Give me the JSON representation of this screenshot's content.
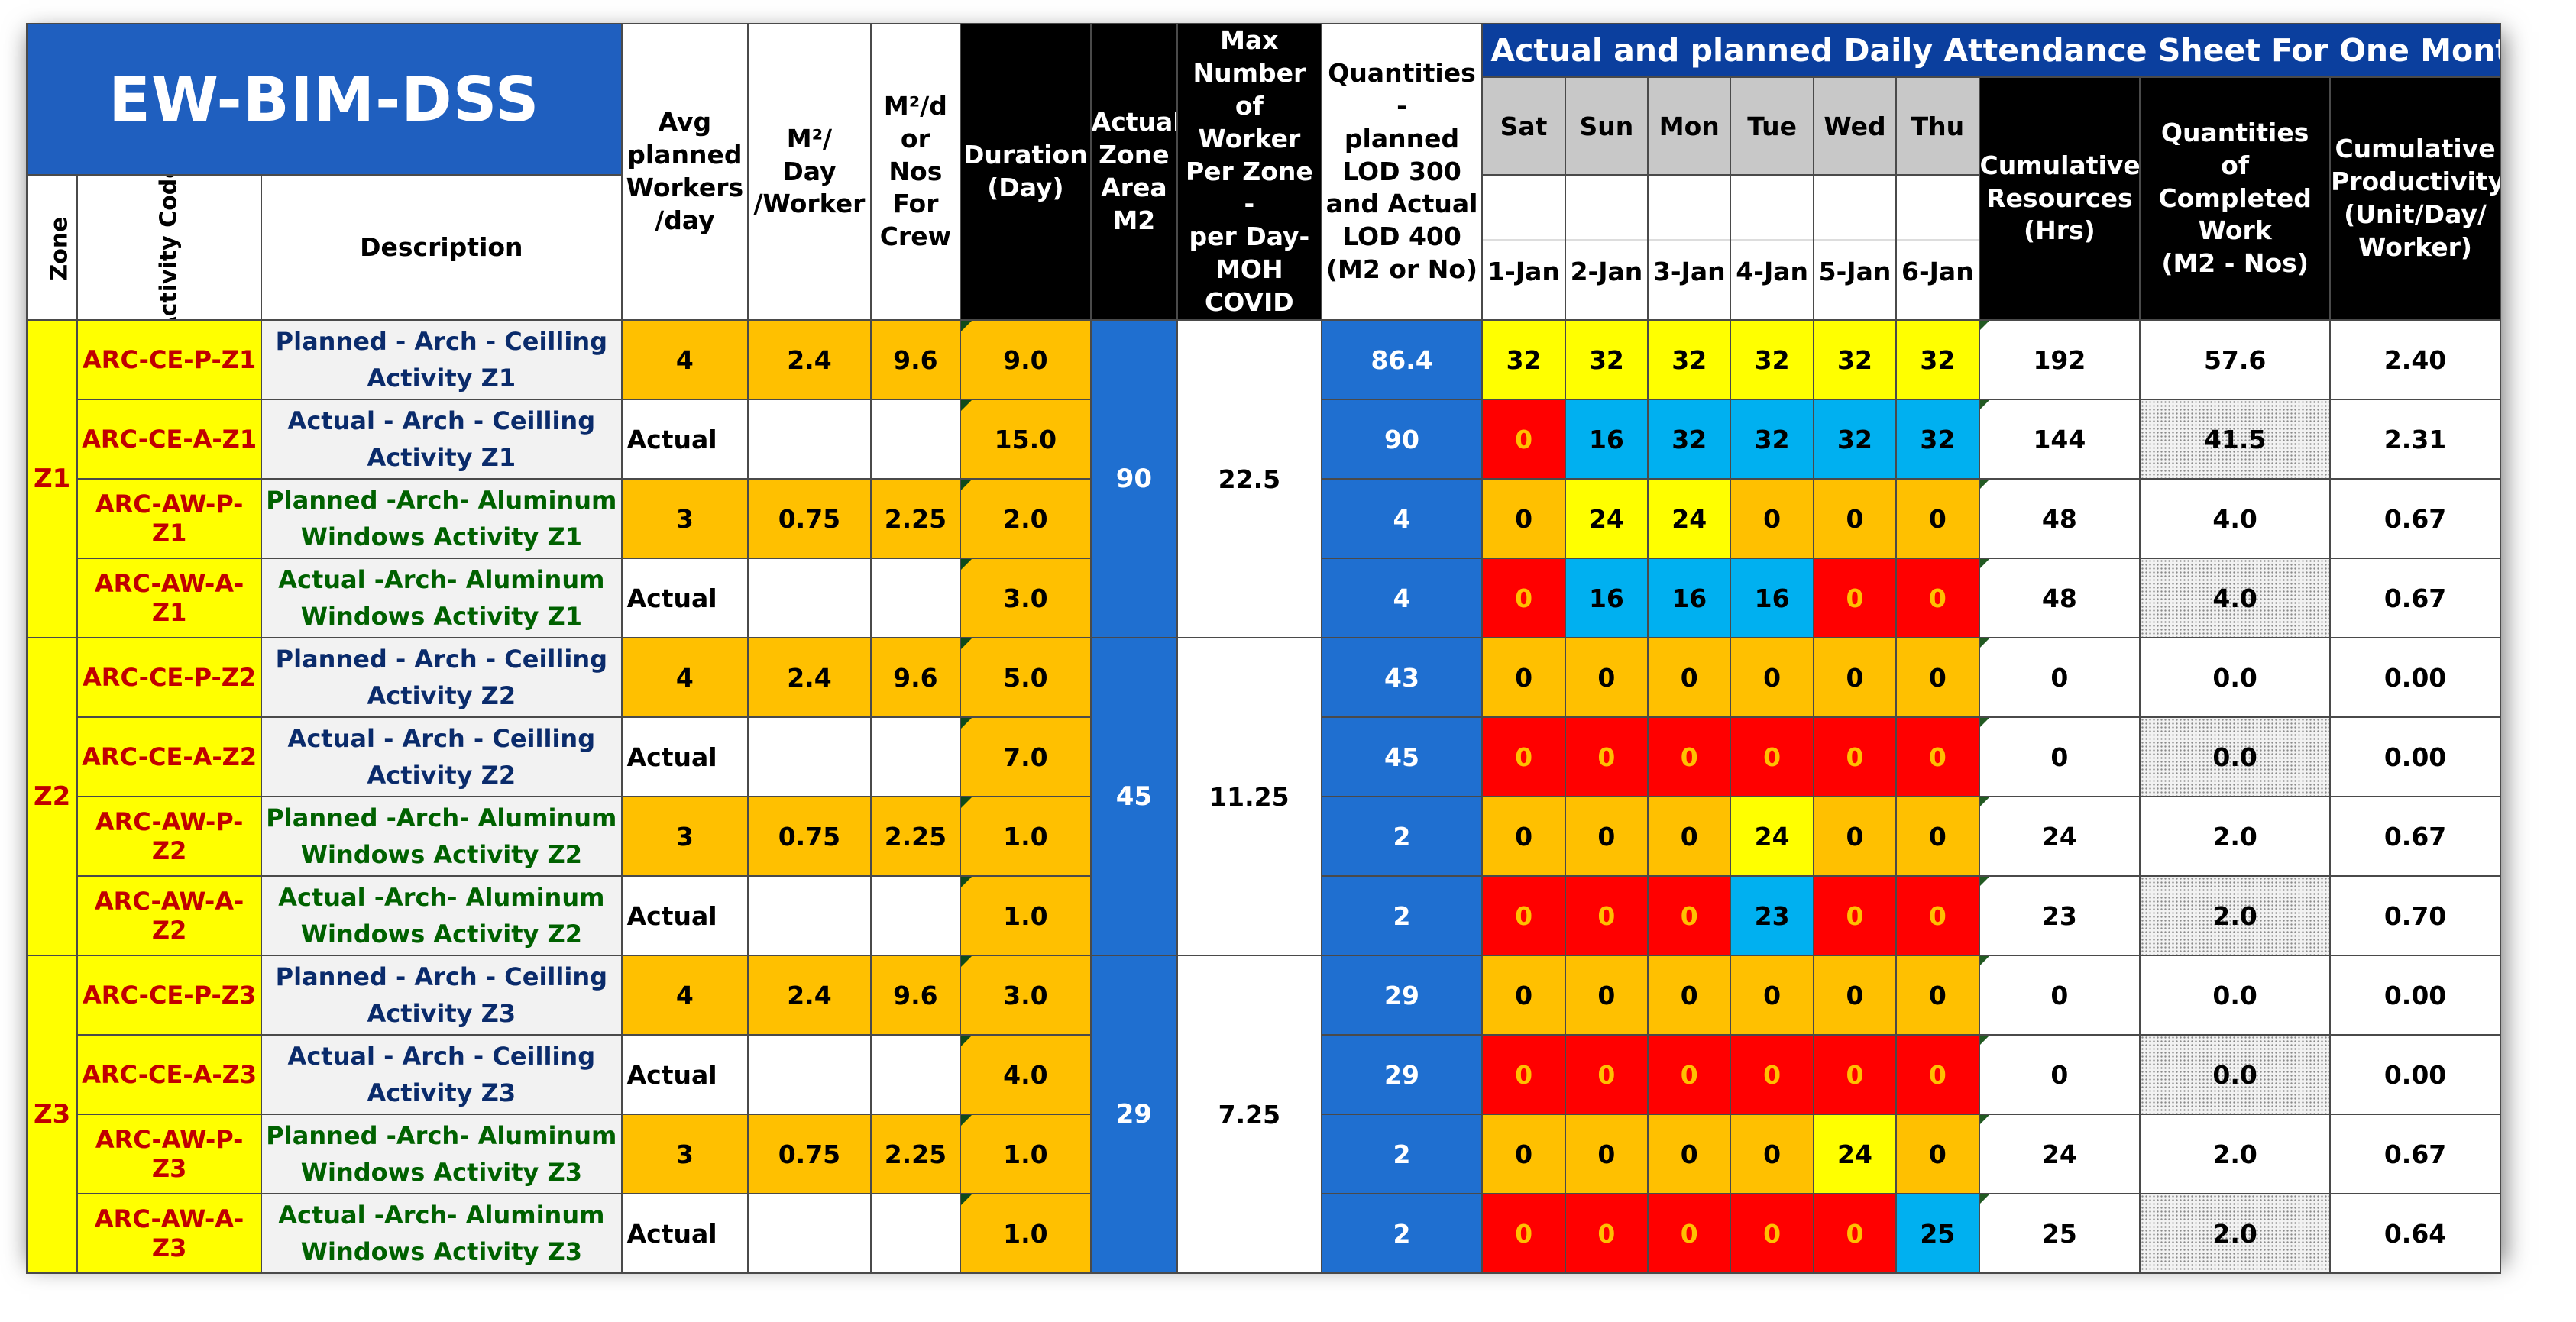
{
  "title": "EW-BIM-DSS",
  "attendance_header": "Actual and planned Daily Attendance Sheet For One Month (per Ho",
  "headers": {
    "zone": "Zone",
    "activity_code": "Activity Code",
    "description": "Description",
    "avg_workers_l1": "Avg",
    "avg_workers_l2": "planned",
    "avg_workers_l3": "Workers",
    "avg_workers_l4": "/day",
    "m2_day_l1": "M²/",
    "m2_day_l2": "Day",
    "m2_day_l3": "/Worker",
    "m2_crew_l1": "M²/d",
    "m2_crew_l2": "or",
    "m2_crew_l3": "Nos",
    "m2_crew_l4": "For",
    "m2_crew_l5": "Crew",
    "duration_l1": "Duration",
    "duration_l2": "(Day)",
    "zone_area_l1": "Actual",
    "zone_area_l2": "Zone",
    "zone_area_l3": "Area",
    "zone_area_l4": "M2",
    "max_workers_l1": "Max",
    "max_workers_l2": "Number of",
    "max_workers_l3": "Worker",
    "max_workers_l4": "Per Zone -",
    "max_workers_l5": "per Day-",
    "max_workers_l6": "MOH",
    "max_workers_l7": "COVID",
    "quantities_l1": "Quantities -",
    "quantities_l2": "planned",
    "quantities_l3": "LOD 300",
    "quantities_l4": "and Actual",
    "quantities_l5": "LOD 400",
    "quantities_l6": "(M2 or No)",
    "cum_resources_l1": "Cumulative",
    "cum_resources_l2": "Resources",
    "cum_resources_l3": "(Hrs)",
    "completed_l1": "Quantities",
    "completed_l2": "of",
    "completed_l3": "Completed",
    "completed_l4": "Work",
    "completed_l5": "(M2 - Nos)",
    "productivity_l1": "Cumulative",
    "productivity_l2": "Productivity",
    "productivity_l3": "(Unit/Day/",
    "productivity_l4": "Worker)"
  },
  "days": [
    {
      "name": "Sat",
      "date": "1-Jan"
    },
    {
      "name": "Sun",
      "date": "2-Jan"
    },
    {
      "name": "Mon",
      "date": "3-Jan"
    },
    {
      "name": "Tue",
      "date": "4-Jan"
    },
    {
      "name": "Wed",
      "date": "5-Jan"
    },
    {
      "name": "Thu",
      "date": "6-Jan"
    }
  ],
  "zones": [
    {
      "zone": "Z1",
      "area": "90",
      "max_workers": "22.5",
      "rows": [
        {
          "code": "ARC-CE-P-Z1",
          "desc1": "Planned - Arch - Ceilling",
          "desc2": "Activity Z1",
          "style": "P",
          "avg": "4",
          "m2day": "2.4",
          "m2crew": "9.6",
          "duration": "9.0",
          "qty": "86.4",
          "days": [
            {
              "v": "32",
              "c": "y"
            },
            {
              "v": "32",
              "c": "y"
            },
            {
              "v": "32",
              "c": "y"
            },
            {
              "v": "32",
              "c": "y"
            },
            {
              "v": "32",
              "c": "y"
            },
            {
              "v": "32",
              "c": "y"
            }
          ],
          "cum": "192",
          "completed": "57.6",
          "productivity": "2.40"
        },
        {
          "code": "ARC-CE-A-Z1",
          "desc1": "Actual - Arch - Ceilling",
          "desc2": "Activity Z1",
          "style": "A",
          "avg": "Actual",
          "m2day": "",
          "m2crew": "",
          "duration": "15.0",
          "qty": "90",
          "days": [
            {
              "v": "0",
              "c": "r"
            },
            {
              "v": "16",
              "c": "b"
            },
            {
              "v": "32",
              "c": "b"
            },
            {
              "v": "32",
              "c": "b"
            },
            {
              "v": "32",
              "c": "b"
            },
            {
              "v": "32",
              "c": "b"
            }
          ],
          "cum": "144",
          "completed": "41.5",
          "productivity": "2.31"
        },
        {
          "code": "ARC-AW-P-Z1",
          "desc1": "Planned -Arch- Aluminum",
          "desc2": "Windows Activity Z1",
          "style": "W",
          "avg": "3",
          "m2day": "0.75",
          "m2crew": "2.25",
          "duration": "2.0",
          "qty": "4",
          "days": [
            {
              "v": "0",
              "c": "o"
            },
            {
              "v": "24",
              "c": "y"
            },
            {
              "v": "24",
              "c": "y"
            },
            {
              "v": "0",
              "c": "o"
            },
            {
              "v": "0",
              "c": "o"
            },
            {
              "v": "0",
              "c": "o"
            }
          ],
          "cum": "48",
          "completed": "4.0",
          "productivity": "0.67"
        },
        {
          "code": "ARC-AW-A-Z1",
          "desc1": "Actual -Arch- Aluminum",
          "desc2": "Windows Activity Z1",
          "style": "W",
          "avg": "Actual",
          "m2day": "",
          "m2crew": "",
          "duration": "3.0",
          "qty": "4",
          "days": [
            {
              "v": "0",
              "c": "r"
            },
            {
              "v": "16",
              "c": "b"
            },
            {
              "v": "16",
              "c": "b"
            },
            {
              "v": "16",
              "c": "b"
            },
            {
              "v": "0",
              "c": "r"
            },
            {
              "v": "0",
              "c": "r"
            }
          ],
          "cum": "48",
          "completed": "4.0",
          "productivity": "0.67"
        }
      ]
    },
    {
      "zone": "Z2",
      "area": "45",
      "max_workers": "11.25",
      "rows": [
        {
          "code": "ARC-CE-P-Z2",
          "desc1": "Planned - Arch - Ceilling",
          "desc2": "Activity Z2",
          "style": "P",
          "avg": "4",
          "m2day": "2.4",
          "m2crew": "9.6",
          "duration": "5.0",
          "qty": "43",
          "days": [
            {
              "v": "0",
              "c": "o"
            },
            {
              "v": "0",
              "c": "o"
            },
            {
              "v": "0",
              "c": "o"
            },
            {
              "v": "0",
              "c": "o"
            },
            {
              "v": "0",
              "c": "o"
            },
            {
              "v": "0",
              "c": "o"
            }
          ],
          "cum": "0",
          "completed": "0.0",
          "productivity": "0.00"
        },
        {
          "code": "ARC-CE-A-Z2",
          "desc1": "Actual - Arch - Ceilling",
          "desc2": "Activity Z2",
          "style": "A",
          "avg": "Actual",
          "m2day": "",
          "m2crew": "",
          "duration": "7.0",
          "qty": "45",
          "days": [
            {
              "v": "0",
              "c": "r"
            },
            {
              "v": "0",
              "c": "r"
            },
            {
              "v": "0",
              "c": "r"
            },
            {
              "v": "0",
              "c": "r"
            },
            {
              "v": "0",
              "c": "r"
            },
            {
              "v": "0",
              "c": "r"
            }
          ],
          "cum": "0",
          "completed": "0.0",
          "productivity": "0.00"
        },
        {
          "code": "ARC-AW-P-Z2",
          "desc1": "Planned -Arch- Aluminum",
          "desc2": "Windows Activity Z2",
          "style": "W",
          "avg": "3",
          "m2day": "0.75",
          "m2crew": "2.25",
          "duration": "1.0",
          "qty": "2",
          "days": [
            {
              "v": "0",
              "c": "o"
            },
            {
              "v": "0",
              "c": "o"
            },
            {
              "v": "0",
              "c": "o"
            },
            {
              "v": "24",
              "c": "y"
            },
            {
              "v": "0",
              "c": "o"
            },
            {
              "v": "0",
              "c": "o"
            }
          ],
          "cum": "24",
          "completed": "2.0",
          "productivity": "0.67"
        },
        {
          "code": "ARC-AW-A-Z2",
          "desc1": "Actual -Arch- Aluminum",
          "desc2": "Windows Activity Z2",
          "style": "W",
          "avg": "Actual",
          "m2day": "",
          "m2crew": "",
          "duration": "1.0",
          "qty": "2",
          "days": [
            {
              "v": "0",
              "c": "r"
            },
            {
              "v": "0",
              "c": "r"
            },
            {
              "v": "0",
              "c": "r"
            },
            {
              "v": "23",
              "c": "b"
            },
            {
              "v": "0",
              "c": "r"
            },
            {
              "v": "0",
              "c": "r"
            }
          ],
          "cum": "23",
          "completed": "2.0",
          "productivity": "0.70"
        }
      ]
    },
    {
      "zone": "Z3",
      "area": "29",
      "max_workers": "7.25",
      "rows": [
        {
          "code": "ARC-CE-P-Z3",
          "desc1": "Planned - Arch - Ceilling",
          "desc2": "Activity Z3",
          "style": "P",
          "avg": "4",
          "m2day": "2.4",
          "m2crew": "9.6",
          "duration": "3.0",
          "qty": "29",
          "days": [
            {
              "v": "0",
              "c": "o"
            },
            {
              "v": "0",
              "c": "o"
            },
            {
              "v": "0",
              "c": "o"
            },
            {
              "v": "0",
              "c": "o"
            },
            {
              "v": "0",
              "c": "o"
            },
            {
              "v": "0",
              "c": "o"
            }
          ],
          "cum": "0",
          "completed": "0.0",
          "productivity": "0.00"
        },
        {
          "code": "ARC-CE-A-Z3",
          "desc1": "Actual - Arch - Ceilling",
          "desc2": "Activity Z3",
          "style": "A",
          "avg": "Actual",
          "m2day": "",
          "m2crew": "",
          "duration": "4.0",
          "qty": "29",
          "days": [
            {
              "v": "0",
              "c": "r"
            },
            {
              "v": "0",
              "c": "r"
            },
            {
              "v": "0",
              "c": "r"
            },
            {
              "v": "0",
              "c": "r"
            },
            {
              "v": "0",
              "c": "r"
            },
            {
              "v": "0",
              "c": "r"
            }
          ],
          "cum": "0",
          "completed": "0.0",
          "productivity": "0.00"
        },
        {
          "code": "ARC-AW-P-Z3",
          "desc1": "Planned -Arch- Aluminum",
          "desc2": "Windows Activity Z3",
          "style": "W",
          "avg": "3",
          "m2day": "0.75",
          "m2crew": "2.25",
          "duration": "1.0",
          "qty": "2",
          "days": [
            {
              "v": "0",
              "c": "o"
            },
            {
              "v": "0",
              "c": "o"
            },
            {
              "v": "0",
              "c": "o"
            },
            {
              "v": "0",
              "c": "o"
            },
            {
              "v": "24",
              "c": "y"
            },
            {
              "v": "0",
              "c": "o"
            }
          ],
          "cum": "24",
          "completed": "2.0",
          "productivity": "0.67"
        },
        {
          "code": "ARC-AW-A-Z3",
          "desc1": "Actual -Arch- Aluminum",
          "desc2": "Windows Activity Z3",
          "style": "W",
          "avg": "Actual",
          "m2day": "",
          "m2crew": "",
          "duration": "1.0",
          "qty": "2",
          "days": [
            {
              "v": "0",
              "c": "r"
            },
            {
              "v": "0",
              "c": "r"
            },
            {
              "v": "0",
              "c": "r"
            },
            {
              "v": "0",
              "c": "r"
            },
            {
              "v": "0",
              "c": "r"
            },
            {
              "v": "25",
              "c": "b"
            }
          ],
          "cum": "25",
          "completed": "2.0",
          "productivity": "0.64"
        }
      ]
    }
  ],
  "colors": {
    "title_bg": "#1f5fbf",
    "header_bar": "#0b3f9e",
    "planned_yellow": "#ffff00",
    "actual_red": "#ff0000",
    "actual_blue": "#00b0f0",
    "zero_orange": "#ffc000",
    "quantity_blue": "#1f6fd0"
  }
}
